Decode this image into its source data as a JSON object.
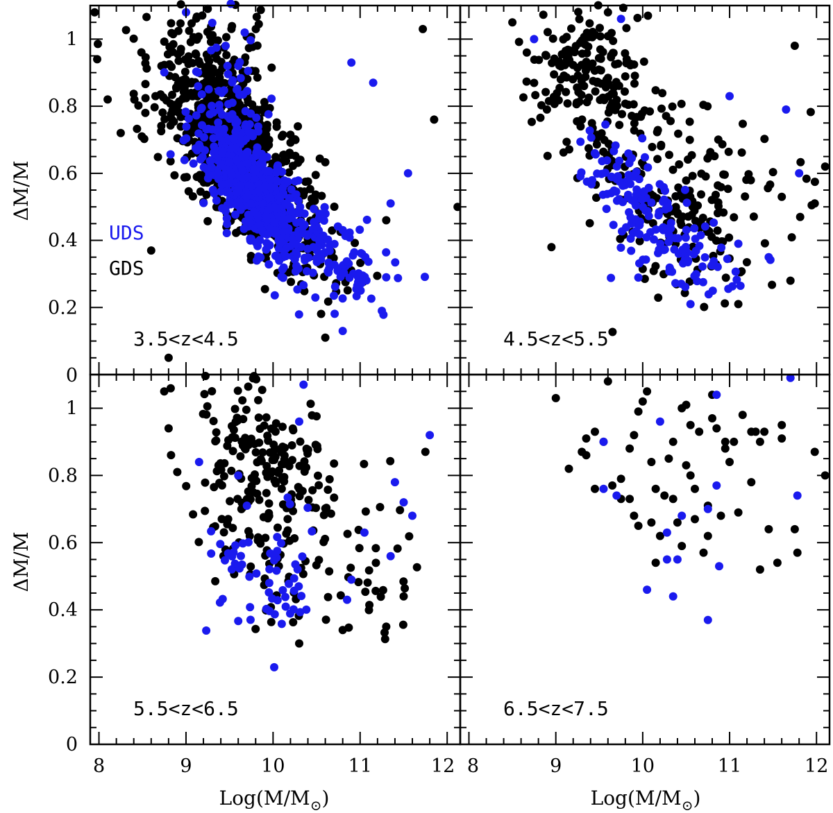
{
  "chart_data": {
    "type": "scatter",
    "colors": {
      "UDS": "#1a1aee",
      "GDS": "#000000"
    },
    "legend": [
      {
        "name": "UDS",
        "color": "#1a1aee"
      },
      {
        "name": "GDS",
        "color": "#000000"
      }
    ],
    "xlabel": "Log(M/M",
    "xlabel_sub": "⊙",
    "xlabel_close": ")",
    "ylabel": "ΔM/M",
    "x_ticks": [
      "8",
      "9",
      "10",
      "11",
      "12"
    ],
    "y_ticks": [
      "0",
      "0.2",
      "0.4",
      "0.6",
      "0.8",
      "1"
    ],
    "xlim": [
      7.9,
      12.15
    ],
    "ylim": [
      0,
      1.1
    ],
    "panels": [
      {
        "label": "3.5<z<4.5",
        "series": [
          {
            "name": "GDS",
            "clusters": [
              {
                "n": 650,
                "mx": 9.55,
                "my": 0.68,
                "sx": 0.38,
                "sy": 0.12,
                "rho": -0.55
              },
              {
                "n": 220,
                "mx": 10.15,
                "my": 0.45,
                "sx": 0.35,
                "sy": 0.1,
                "rho": -0.6
              },
              {
                "n": 120,
                "mx": 9.2,
                "my": 0.9,
                "sx": 0.35,
                "sy": 0.1,
                "rho": 0.0
              }
            ],
            "points": [
              [
                7.95,
                1.08
              ],
              [
                7.98,
                0.94
              ],
              [
                8.8,
                0.05
              ],
              [
                8.6,
                0.37
              ],
              [
                11.85,
                0.76
              ],
              [
                11.72,
                1.03
              ],
              [
                12.12,
                0.5
              ],
              [
                11.3,
                0.46
              ],
              [
                10.6,
                0.11
              ],
              [
                9.25,
                1.09
              ],
              [
                8.1,
                0.82
              ],
              [
                8.25,
                0.72
              ]
            ]
          },
          {
            "name": "UDS",
            "clusters": [
              {
                "n": 550,
                "mx": 9.75,
                "my": 0.56,
                "sx": 0.28,
                "sy": 0.1,
                "rho": -0.65
              },
              {
                "n": 120,
                "mx": 10.55,
                "my": 0.38,
                "sx": 0.35,
                "sy": 0.08,
                "rho": -0.5
              },
              {
                "n": 50,
                "mx": 9.45,
                "my": 0.85,
                "sx": 0.25,
                "sy": 0.1,
                "rho": 0.0
              }
            ],
            "points": [
              [
                11.55,
                0.6
              ],
              [
                11.35,
                0.51
              ],
              [
                10.8,
                0.13
              ],
              [
                11.15,
                0.87
              ],
              [
                10.9,
                0.93
              ],
              [
                9.0,
                1.08
              ],
              [
                11.3,
                0.29
              ],
              [
                11.25,
                0.19
              ]
            ]
          }
        ]
      },
      {
        "label": "4.5<z<5.5",
        "series": [
          {
            "name": "GDS",
            "clusters": [
              {
                "n": 200,
                "mx": 9.45,
                "my": 0.88,
                "sx": 0.38,
                "sy": 0.12,
                "rho": -0.3
              },
              {
                "n": 110,
                "mx": 10.25,
                "my": 0.47,
                "sx": 0.4,
                "sy": 0.11,
                "rho": -0.4
              },
              {
                "n": 70,
                "mx": 10.9,
                "my": 0.58,
                "sx": 0.55,
                "sy": 0.15,
                "rho": 0.0
              }
            ],
            "points": [
              [
                8.5,
                1.05
              ],
              [
                8.95,
                0.38
              ],
              [
                11.75,
                0.98
              ],
              [
                11.7,
                0.28
              ],
              [
                11.1,
                0.21
              ],
              [
                11.98,
                0.51
              ],
              [
                12.1,
                0.62
              ],
              [
                11.6,
                0.53
              ],
              [
                9.6,
                1.08
              ]
            ]
          },
          {
            "name": "UDS",
            "clusters": [
              {
                "n": 130,
                "mx": 9.95,
                "my": 0.53,
                "sx": 0.32,
                "sy": 0.11,
                "rho": -0.65
              },
              {
                "n": 40,
                "mx": 10.6,
                "my": 0.35,
                "sx": 0.35,
                "sy": 0.05,
                "rho": 0.0
              }
            ],
            "points": [
              [
                9.75,
                1.06
              ],
              [
                8.75,
                1.0
              ],
              [
                11.0,
                0.83
              ],
              [
                11.65,
                0.79
              ],
              [
                11.8,
                0.6
              ],
              [
                11.1,
                0.39
              ],
              [
                11.45,
                0.35
              ],
              [
                10.55,
                0.21
              ]
            ]
          }
        ]
      },
      {
        "label": "5.5<z<6.5",
        "series": [
          {
            "name": "GDS",
            "clusters": [
              {
                "n": 230,
                "mx": 9.9,
                "my": 0.78,
                "sx": 0.45,
                "sy": 0.17,
                "rho": -0.3
              },
              {
                "n": 40,
                "mx": 10.9,
                "my": 0.55,
                "sx": 0.45,
                "sy": 0.12,
                "rho": 0.0
              }
            ],
            "points": [
              [
                8.75,
                1.05
              ],
              [
                8.8,
                0.94
              ],
              [
                8.9,
                0.81
              ],
              [
                11.75,
                0.87
              ],
              [
                11.3,
                0.35
              ],
              [
                11.5,
                0.44
              ],
              [
                10.3,
                0.3
              ],
              [
                10.8,
                0.34
              ]
            ]
          },
          {
            "name": "UDS",
            "clusters": [
              {
                "n": 60,
                "mx": 9.95,
                "my": 0.52,
                "sx": 0.3,
                "sy": 0.1,
                "rho": 0.0
              }
            ],
            "points": [
              [
                9.15,
                0.84
              ],
              [
                9.6,
                0.8
              ],
              [
                9.7,
                0.71
              ],
              [
                10.35,
                1.07
              ],
              [
                11.8,
                0.92
              ],
              [
                11.4,
                0.78
              ],
              [
                11.5,
                0.72
              ],
              [
                11.6,
                0.68
              ],
              [
                11.35,
                0.56
              ],
              [
                11.05,
                0.63
              ],
              [
                10.9,
                0.49
              ],
              [
                10.85,
                0.43
              ],
              [
                10.3,
                0.96
              ]
            ]
          }
        ]
      },
      {
        "label": "6.5<z<7.5",
        "series": [
          {
            "name": "GDS",
            "points": [
              [
                9.0,
                1.03
              ],
              [
                9.15,
                0.82
              ],
              [
                9.3,
                0.87
              ],
              [
                9.35,
                0.91
              ],
              [
                9.45,
                0.93
              ],
              [
                9.55,
                0.9
              ],
              [
                9.65,
                0.77
              ],
              [
                9.75,
                0.79
              ],
              [
                9.85,
                0.73
              ],
              [
                9.9,
                0.68
              ],
              [
                9.95,
                0.99
              ],
              [
                10.0,
                1.02
              ],
              [
                10.05,
                1.05
              ],
              [
                10.1,
                0.66
              ],
              [
                10.15,
                0.54
              ],
              [
                10.2,
                0.62
              ],
              [
                10.3,
                0.85
              ],
              [
                10.35,
                0.9
              ],
              [
                10.4,
                0.66
              ],
              [
                10.45,
                0.59
              ],
              [
                10.5,
                1.01
              ],
              [
                10.55,
                0.8
              ],
              [
                10.6,
                0.76
              ],
              [
                10.7,
                0.57
              ],
              [
                10.75,
                0.62
              ],
              [
                10.8,
                0.97
              ],
              [
                10.9,
                0.68
              ],
              [
                10.95,
                0.88
              ],
              [
                11.0,
                0.84
              ],
              [
                11.1,
                0.69
              ],
              [
                11.15,
                0.98
              ],
              [
                11.25,
                0.78
              ],
              [
                11.3,
                0.93
              ],
              [
                11.35,
                0.9
              ],
              [
                11.45,
                0.64
              ],
              [
                11.55,
                0.54
              ],
              [
                11.6,
                0.91
              ],
              [
                11.75,
                0.64
              ],
              [
                11.78,
                0.57
              ],
              [
                11.98,
                0.87
              ],
              [
                12.1,
                0.8
              ],
              [
                9.6,
                1.08
              ],
              [
                10.8,
                1.04
              ],
              [
                10.65,
                0.93
              ],
              [
                9.85,
                0.88
              ],
              [
                10.25,
                0.74
              ],
              [
                10.35,
                0.73
              ],
              [
                10.5,
                0.83
              ],
              [
                11.35,
                0.52
              ],
              [
                10.95,
                0.9
              ],
              [
                9.45,
                0.76
              ],
              [
                9.75,
                0.73
              ],
              [
                10.15,
                0.76
              ],
              [
                10.55,
                0.95
              ],
              [
                10.75,
                0.71
              ],
              [
                11.05,
                0.9
              ],
              [
                11.4,
                0.93
              ],
              [
                9.95,
                0.65
              ],
              [
                10.45,
                1.0
              ],
              [
                11.25,
                0.93
              ],
              [
                10.1,
                0.84
              ],
              [
                9.9,
                0.92
              ],
              [
                11.6,
                0.95
              ],
              [
                10.85,
                0.94
              ],
              [
                9.35,
                0.86
              ],
              [
                10.6,
                0.67
              ]
            ]
          },
          {
            "name": "UDS",
            "points": [
              [
                9.55,
                0.9
              ],
              [
                9.55,
                0.76
              ],
              [
                9.7,
                0.74
              ],
              [
                10.05,
                0.46
              ],
              [
                10.2,
                0.96
              ],
              [
                10.28,
                0.63
              ],
              [
                10.28,
                0.55
              ],
              [
                10.35,
                0.44
              ],
              [
                10.4,
                0.55
              ],
              [
                10.45,
                0.68
              ],
              [
                10.75,
                0.37
              ],
              [
                10.85,
                0.77
              ],
              [
                10.88,
                0.53
              ],
              [
                10.85,
                1.04
              ],
              [
                11.7,
                1.09
              ],
              [
                11.78,
                0.74
              ],
              [
                10.75,
                0.7
              ]
            ]
          }
        ]
      }
    ]
  }
}
